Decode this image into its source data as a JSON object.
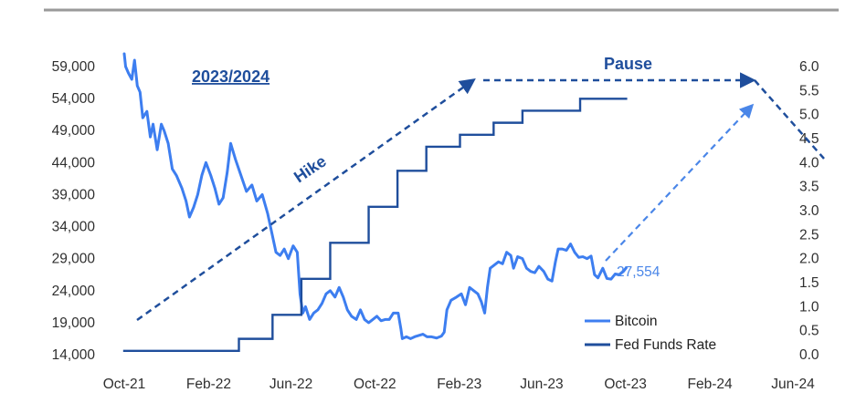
{
  "chart_data": {
    "type": "line",
    "title": "",
    "xlabel": "",
    "ylabel": "",
    "categories": [
      "Oct-21",
      "Feb-22",
      "Jun-22",
      "Oct-22",
      "Feb-23",
      "Jun-23",
      "Oct-23",
      "Feb-24",
      "Jun-24"
    ],
    "ylim_left": [
      14000,
      59000
    ],
    "ylim_right": [
      0.0,
      6.0
    ],
    "left_ticks": [
      "59,000",
      "54,000",
      "49,000",
      "44,000",
      "39,000",
      "34,000",
      "29,000",
      "24,000",
      "19,000",
      "14,000"
    ],
    "right_ticks": [
      "6.0",
      "5.5",
      "5.0",
      "4.5",
      "4.0",
      "3.5",
      "3.0",
      "2.5",
      "2.0",
      "1.5",
      "1.0",
      "0.5",
      "0.0"
    ],
    "legend": {
      "placement": "bottom-right",
      "entries": [
        "Bitcoin",
        "Fed Funds Rate"
      ]
    },
    "series": [
      {
        "name": "Bitcoin",
        "axis": "left",
        "color": "#3d7ef0",
        "points": [
          [
            "2021-10-01",
            61000
          ],
          [
            "2021-10-03",
            59000
          ],
          [
            "2021-10-07",
            58000
          ],
          [
            "2021-10-12",
            57000
          ],
          [
            "2021-10-16",
            60000
          ],
          [
            "2021-10-20",
            56000
          ],
          [
            "2021-10-24",
            55000
          ],
          [
            "2021-10-28",
            51000
          ],
          [
            "2021-11-03",
            52000
          ],
          [
            "2021-11-08",
            48000
          ],
          [
            "2021-11-12",
            50000
          ],
          [
            "2021-11-18",
            46000
          ],
          [
            "2021-11-24",
            50000
          ],
          [
            "2021-11-28",
            49000
          ],
          [
            "2021-12-04",
            47000
          ],
          [
            "2021-12-10",
            43000
          ],
          [
            "2021-12-16",
            42000
          ],
          [
            "2021-12-24",
            40000
          ],
          [
            "2021-12-30",
            38000
          ],
          [
            "2022-01-04",
            35500
          ],
          [
            "2022-01-10",
            37000
          ],
          [
            "2022-01-16",
            39000
          ],
          [
            "2022-01-22",
            42000
          ],
          [
            "2022-01-28",
            44000
          ],
          [
            "2022-02-04",
            42000
          ],
          [
            "2022-02-10",
            40000
          ],
          [
            "2022-02-16",
            37500
          ],
          [
            "2022-02-22",
            38500
          ],
          [
            "2022-02-28",
            42500
          ],
          [
            "2022-03-05",
            47000
          ],
          [
            "2022-03-12",
            44500
          ],
          [
            "2022-03-20",
            42000
          ],
          [
            "2022-03-28",
            39500
          ],
          [
            "2022-04-05",
            40500
          ],
          [
            "2022-04-12",
            38000
          ],
          [
            "2022-04-20",
            39000
          ],
          [
            "2022-04-28",
            36000
          ],
          [
            "2022-05-04",
            33000
          ],
          [
            "2022-05-10",
            30000
          ],
          [
            "2022-05-16",
            29500
          ],
          [
            "2022-05-22",
            30500
          ],
          [
            "2022-05-28",
            29000
          ],
          [
            "2022-06-04",
            31000
          ],
          [
            "2022-06-10",
            30000
          ],
          [
            "2022-06-14",
            23500
          ],
          [
            "2022-06-18",
            20500
          ],
          [
            "2022-06-22",
            21500
          ],
          [
            "2022-06-28",
            19500
          ],
          [
            "2022-07-04",
            20500
          ],
          [
            "2022-07-10",
            21000
          ],
          [
            "2022-07-16",
            22000
          ],
          [
            "2022-07-22",
            23500
          ],
          [
            "2022-07-28",
            24000
          ],
          [
            "2022-08-04",
            23000
          ],
          [
            "2022-08-10",
            24500
          ],
          [
            "2022-08-16",
            23000
          ],
          [
            "2022-08-22",
            21000
          ],
          [
            "2022-08-28",
            20000
          ],
          [
            "2022-09-04",
            19500
          ],
          [
            "2022-09-10",
            21000
          ],
          [
            "2022-09-16",
            19500
          ],
          [
            "2022-09-22",
            19000
          ],
          [
            "2022-09-28",
            19500
          ],
          [
            "2022-10-04",
            20000
          ],
          [
            "2022-10-10",
            19300
          ],
          [
            "2022-10-16",
            19500
          ],
          [
            "2022-10-22",
            19500
          ],
          [
            "2022-10-28",
            20500
          ],
          [
            "2022-11-04",
            20500
          ],
          [
            "2022-11-08",
            18000
          ],
          [
            "2022-11-10",
            16500
          ],
          [
            "2022-11-16",
            16800
          ],
          [
            "2022-11-22",
            16500
          ],
          [
            "2022-11-28",
            16800
          ],
          [
            "2022-12-04",
            17000
          ],
          [
            "2022-12-10",
            17200
          ],
          [
            "2022-12-16",
            16800
          ],
          [
            "2022-12-22",
            16800
          ],
          [
            "2022-12-30",
            16600
          ],
          [
            "2023-01-06",
            16900
          ],
          [
            "2023-01-10",
            17500
          ],
          [
            "2023-01-14",
            21000
          ],
          [
            "2023-01-20",
            22500
          ],
          [
            "2023-01-28",
            23000
          ],
          [
            "2023-02-04",
            23500
          ],
          [
            "2023-02-10",
            21800
          ],
          [
            "2023-02-16",
            24500
          ],
          [
            "2023-02-22",
            24000
          ],
          [
            "2023-02-28",
            23500
          ],
          [
            "2023-03-05",
            22300
          ],
          [
            "2023-03-10",
            20500
          ],
          [
            "2023-03-14",
            24500
          ],
          [
            "2023-03-18",
            27500
          ],
          [
            "2023-03-24",
            28000
          ],
          [
            "2023-03-30",
            28500
          ],
          [
            "2023-04-05",
            28200
          ],
          [
            "2023-04-11",
            30000
          ],
          [
            "2023-04-17",
            29500
          ],
          [
            "2023-04-21",
            27500
          ],
          [
            "2023-04-27",
            29300
          ],
          [
            "2023-05-04",
            29000
          ],
          [
            "2023-05-10",
            27500
          ],
          [
            "2023-05-16",
            27000
          ],
          [
            "2023-05-22",
            26800
          ],
          [
            "2023-05-28",
            27800
          ],
          [
            "2023-06-04",
            27000
          ],
          [
            "2023-06-10",
            25800
          ],
          [
            "2023-06-16",
            25500
          ],
          [
            "2023-06-21",
            28500
          ],
          [
            "2023-06-25",
            30500
          ],
          [
            "2023-07-01",
            30500
          ],
          [
            "2023-07-07",
            30300
          ],
          [
            "2023-07-13",
            31300
          ],
          [
            "2023-07-19",
            30000
          ],
          [
            "2023-07-25",
            29200
          ],
          [
            "2023-07-31",
            29300
          ],
          [
            "2023-08-06",
            29000
          ],
          [
            "2023-08-12",
            29400
          ],
          [
            "2023-08-17",
            26500
          ],
          [
            "2023-08-22",
            26000
          ],
          [
            "2023-08-29",
            27500
          ],
          [
            "2023-09-04",
            25900
          ],
          [
            "2023-09-10",
            25800
          ],
          [
            "2023-09-16",
            26600
          ],
          [
            "2023-09-22",
            26500
          ],
          [
            "2023-09-28",
            27000
          ],
          [
            "2023-10-02",
            27554
          ]
        ]
      },
      {
        "name": "Fed Funds Rate",
        "axis": "right",
        "color": "#1f4e9c",
        "step": true,
        "points": [
          [
            "2021-10-01",
            0.08
          ],
          [
            "2022-03-17",
            0.33
          ],
          [
            "2022-05-05",
            0.83
          ],
          [
            "2022-06-16",
            1.58
          ],
          [
            "2022-07-28",
            2.33
          ],
          [
            "2022-09-22",
            3.08
          ],
          [
            "2022-11-03",
            3.83
          ],
          [
            "2022-12-15",
            4.33
          ],
          [
            "2023-02-02",
            4.58
          ],
          [
            "2023-03-23",
            4.83
          ],
          [
            "2023-05-04",
            5.08
          ],
          [
            "2023-07-27",
            5.33
          ],
          [
            "2023-10-02",
            5.33
          ]
        ]
      }
    ],
    "annotations": {
      "period_title": "2023/2024",
      "hike_label": "Hike",
      "pause_label": "Pause",
      "last_value_label": "27,554"
    }
  }
}
